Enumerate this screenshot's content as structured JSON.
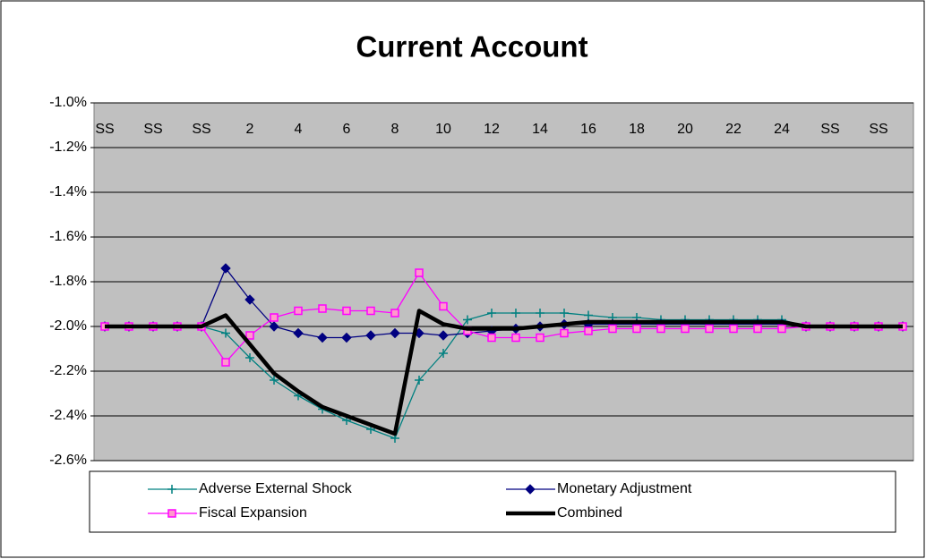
{
  "chart_data": {
    "type": "line",
    "title": "Current Account",
    "categories": [
      "SS",
      null,
      "SS",
      null,
      "SS",
      null,
      "2",
      null,
      "4",
      null,
      "6",
      null,
      "8",
      null,
      "10",
      null,
      "12",
      null,
      "14",
      null,
      "16",
      null,
      "18",
      null,
      "20",
      null,
      "22",
      null,
      "24",
      null,
      "SS",
      null,
      "SS",
      null
    ],
    "series": [
      {
        "name": "Adverse External Shock",
        "color": "#008080",
        "marker": "plus",
        "values": [
          -2.0,
          -2.0,
          -2.0,
          -2.0,
          -2.0,
          -2.03,
          -2.14,
          -2.24,
          -2.31,
          -2.37,
          -2.42,
          -2.46,
          -2.5,
          -2.24,
          -2.12,
          -1.97,
          -1.94,
          -1.94,
          -1.94,
          -1.94,
          -1.95,
          -1.96,
          -1.96,
          -1.97,
          -1.97,
          -1.97,
          -1.97,
          -1.97,
          -1.97,
          -2.0,
          -2.0,
          -2.0,
          -2.0,
          -2.0
        ]
      },
      {
        "name": "Monetary Adjustment",
        "color": "#000080",
        "marker": "diamond",
        "values": [
          -2.0,
          -2.0,
          -2.0,
          -2.0,
          -2.0,
          -1.74,
          -1.88,
          -2.0,
          -2.03,
          -2.05,
          -2.05,
          -2.04,
          -2.03,
          -2.03,
          -2.04,
          -2.03,
          -2.02,
          -2.01,
          -2.0,
          -1.99,
          -1.99,
          -1.99,
          -1.99,
          -1.99,
          -1.99,
          -1.99,
          -1.99,
          -1.99,
          -1.99,
          -2.0,
          -2.0,
          -2.0,
          -2.0,
          -2.0
        ]
      },
      {
        "name": "Fiscal Expansion",
        "color": "#ff00ff",
        "marker": "square",
        "values": [
          -2.0,
          -2.0,
          -2.0,
          -2.0,
          -2.0,
          -2.16,
          -2.04,
          -1.96,
          -1.93,
          -1.92,
          -1.93,
          -1.93,
          -1.94,
          -1.76,
          -1.91,
          -2.02,
          -2.05,
          -2.05,
          -2.05,
          -2.03,
          -2.02,
          -2.01,
          -2.01,
          -2.01,
          -2.01,
          -2.01,
          -2.01,
          -2.01,
          -2.01,
          -2.0,
          -2.0,
          -2.0,
          -2.0,
          -2.0
        ]
      },
      {
        "name": "Combined",
        "color": "#000000",
        "marker": "none",
        "values": [
          -2.0,
          -2.0,
          -2.0,
          -2.0,
          -2.0,
          -1.95,
          -2.08,
          -2.21,
          -2.29,
          -2.36,
          -2.4,
          -2.44,
          -2.48,
          -1.93,
          -1.99,
          -2.01,
          -2.01,
          -2.01,
          -2.0,
          -1.99,
          -1.98,
          -1.98,
          -1.98,
          -1.98,
          -1.98,
          -1.98,
          -1.98,
          -1.98,
          -1.98,
          -2.0,
          -2.0,
          -2.0,
          -2.0,
          -2.0
        ]
      }
    ],
    "ylim": [
      -2.6,
      -1.0
    ],
    "yticks": [
      {
        "value": -2.6,
        "label": "-2.6%"
      },
      {
        "value": -2.4,
        "label": "-2.4%"
      },
      {
        "value": -2.2,
        "label": "-2.2%"
      },
      {
        "value": -2.0,
        "label": "-2.0%"
      },
      {
        "value": -1.8,
        "label": "-1.8%"
      },
      {
        "value": -1.6,
        "label": "-1.6%"
      },
      {
        "value": -1.4,
        "label": "-1.4%"
      },
      {
        "value": -1.2,
        "label": "-1.2%"
      },
      {
        "value": -1.0,
        "label": "-1.0%"
      }
    ],
    "grid": true,
    "plot_background": "#c0c0c0",
    "legend": "bottom"
  }
}
